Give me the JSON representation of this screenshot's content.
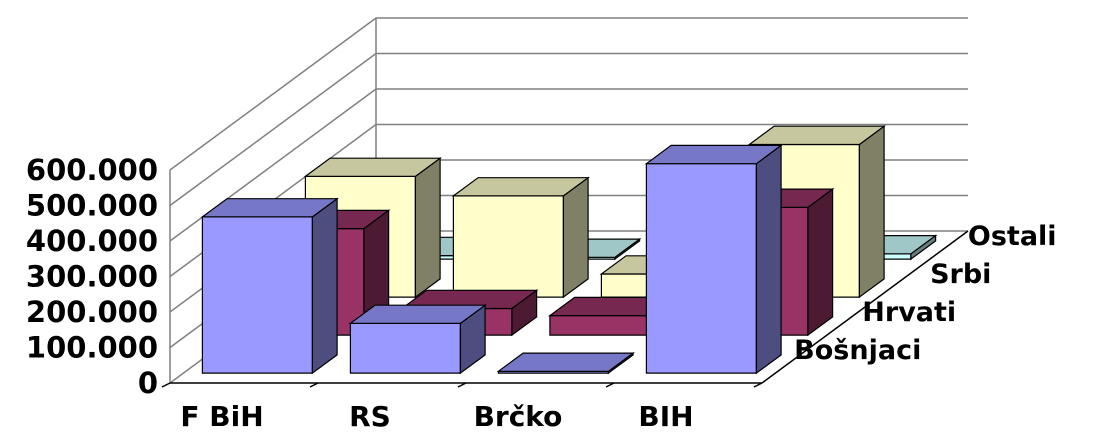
{
  "chart_data": {
    "type": "bar",
    "style": "3d-clustered-depth",
    "categories": [
      "F BiH",
      "RS",
      "Brčko",
      "BIH"
    ],
    "series": [
      {
        "name": "Bošnjaci",
        "values": [
          440000,
          140000,
          5000,
          590000
        ],
        "color": "#9999ff"
      },
      {
        "name": "Hrvati",
        "values": [
          300000,
          75000,
          55000,
          360000
        ],
        "color": "#993366"
      },
      {
        "name": "Srbi",
        "values": [
          340000,
          285000,
          65000,
          430000
        ],
        "color": "#ffffcc"
      },
      {
        "name": "Ostali",
        "values": [
          10000,
          5000,
          3000,
          15000
        ],
        "color": "#ccffff"
      }
    ],
    "ylim": [
      0,
      600000
    ],
    "yticks": [
      "0",
      "100.000",
      "200.000",
      "300.000",
      "400.000",
      "500.000",
      "600.000"
    ],
    "grid": true,
    "xlabel": "",
    "ylabel": "",
    "title": ""
  }
}
